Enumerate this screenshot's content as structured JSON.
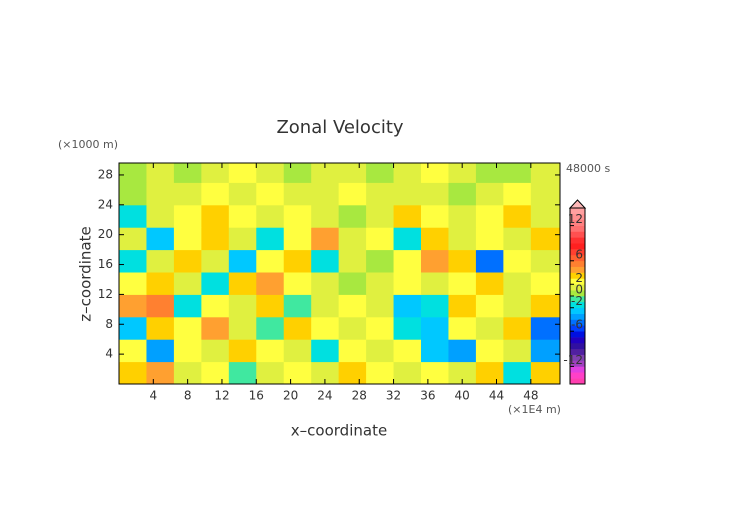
{
  "chart_data": {
    "type": "contour",
    "title": "Zonal Velocity",
    "x_label": "x–coordinate",
    "y_label": "z–coordinate",
    "x_unit": "(×1E4 m)",
    "y_unit": "(×1000 m)",
    "time_label": "48000 s",
    "xlim": [
      0,
      51.4
    ],
    "ylim": [
      0,
      29.6
    ],
    "xticks": [
      4,
      8,
      12,
      16,
      20,
      24,
      28,
      32,
      36,
      40,
      44,
      48
    ],
    "yticks": [
      4,
      8,
      12,
      16,
      20,
      24,
      28
    ],
    "x": [
      1.6,
      4.8,
      8.0,
      11.2,
      14.4,
      17.6,
      20.8,
      24.0,
      27.2,
      30.4,
      33.6,
      36.8,
      40.0,
      43.2,
      46.4,
      49.6
    ],
    "z": [
      1.5,
      4.5,
      7.5,
      10.5,
      13.5,
      16.5,
      19.5,
      22.5,
      25.5,
      28.5
    ],
    "field": {
      "values": [
        [
          3,
          4,
          1,
          2,
          -1,
          1,
          2,
          1,
          3,
          2,
          1,
          2,
          1,
          3,
          -2,
          3
        ],
        [
          2,
          -4,
          2,
          1,
          3,
          2,
          1,
          -2,
          2,
          1,
          2,
          -3,
          -4,
          2,
          1,
          -4
        ],
        [
          -3,
          3,
          2,
          4,
          1,
          -1,
          3,
          2,
          1,
          2,
          -2,
          -3,
          2,
          1,
          3,
          -5
        ],
        [
          4,
          5,
          -2,
          2,
          1,
          3,
          -1,
          1,
          2,
          1,
          -3,
          -2,
          3,
          2,
          1,
          3
        ],
        [
          2,
          3,
          1,
          -2,
          3,
          4,
          2,
          1,
          0,
          1,
          2,
          1,
          2,
          3,
          1,
          2
        ],
        [
          -2,
          1,
          3,
          1,
          -3,
          2,
          3,
          -2,
          1,
          0,
          2,
          4,
          3,
          -5,
          2,
          1
        ],
        [
          1,
          -3,
          2,
          3,
          1,
          -2,
          2,
          4,
          1,
          2,
          -2,
          3,
          1,
          2,
          1,
          3
        ],
        [
          -2,
          1,
          2,
          3,
          2,
          1,
          2,
          1,
          0,
          1,
          3,
          2,
          1,
          2,
          3,
          1
        ],
        [
          0,
          1,
          1,
          2,
          1,
          2,
          1,
          1,
          2,
          1,
          1,
          1,
          0,
          1,
          2,
          1
        ],
        [
          0,
          1,
          0,
          1,
          2,
          1,
          0,
          1,
          1,
          0,
          1,
          2,
          1,
          0,
          0,
          1
        ]
      ]
    },
    "clim": [
      -15,
      15
    ],
    "cticks": [
      -12,
      -6,
      -2,
      0,
      2,
      6,
      12
    ],
    "palette": [
      "#ff3fb0",
      "#ff40c8",
      "#e040e0",
      "#a040c0",
      "#8040b0",
      "#5020a0",
      "#3010a0",
      "#2000c0",
      "#0010e0",
      "#0040ff",
      "#0070ff",
      "#00a0ff",
      "#00c8ff",
      "#00e0e0",
      "#40e8a0",
      "#a8e840",
      "#e0f040",
      "#ffff40",
      "#ffd000",
      "#ffa030",
      "#ff8030",
      "#ff6030",
      "#ff4030",
      "#ff2020",
      "#ff3030",
      "#ff5050",
      "#ff7070",
      "#ff8080",
      "#ff9090",
      "#ffa0a0"
    ],
    "over_color": "#ffb8b8"
  }
}
